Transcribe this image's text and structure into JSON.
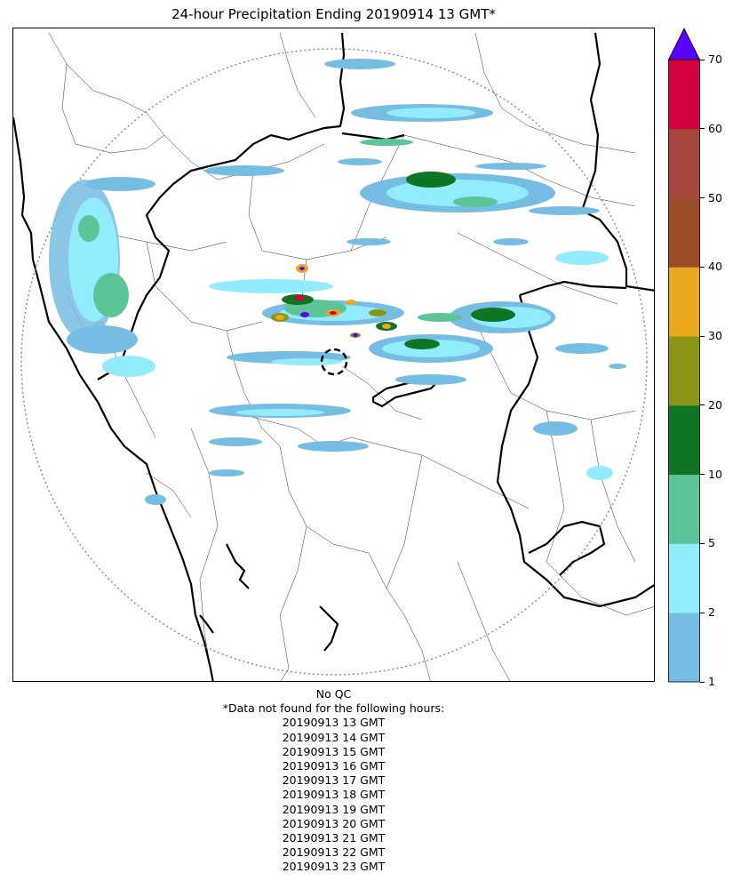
{
  "title": "24-hour Precipitation Ending 20190914 13 GMT*",
  "colorbar": {
    "ticks": [
      "1",
      "2",
      "5",
      "10",
      "20",
      "30",
      "40",
      "50",
      "60",
      "70"
    ],
    "colors": [
      "#76bde3",
      "#93ecfd",
      "#5cc597",
      "#0f7522",
      "#8c9518",
      "#e8a91c",
      "#9a4d27",
      "#a6463d",
      "#d5003f"
    ],
    "extend_color": "#5a00ff"
  },
  "map": {
    "radar_range_ring_color": "#888888",
    "site_marker": "dashed-circle",
    "precip_colors": {
      "light": "#76bde3",
      "cyan": "#93ecfd",
      "medium_green": "#5cc597",
      "dark_green": "#0f7522",
      "olive": "#8c9518",
      "orange": "#e8a91c",
      "red": "#d5003f",
      "purple": "#5a00ff"
    }
  },
  "footer": {
    "qc": "No QC",
    "note": "*Data not found for the following hours:",
    "missing_hours": [
      "20190913 13 GMT",
      "20190913 14 GMT",
      "20190913 15 GMT",
      "20190913 16 GMT",
      "20190913 17 GMT",
      "20190913 18 GMT",
      "20190913 19 GMT",
      "20190913 20 GMT",
      "20190913 21 GMT",
      "20190913 22 GMT",
      "20190913 23 GMT"
    ]
  }
}
